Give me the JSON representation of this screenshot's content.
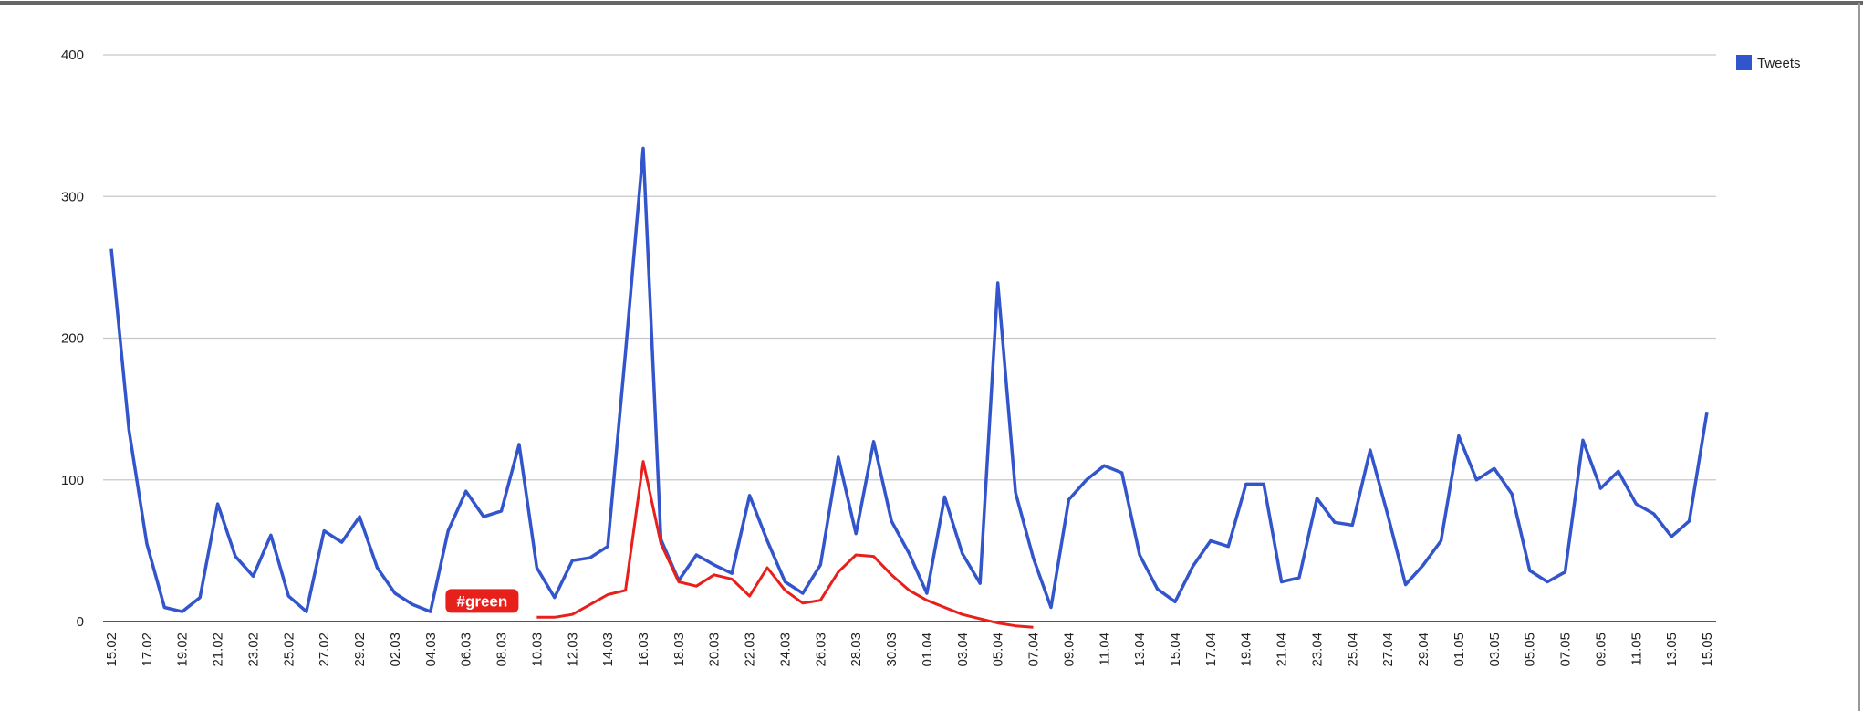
{
  "chart_data": {
    "type": "line",
    "categories": [
      "15.02",
      null,
      "17.02",
      null,
      "19.02",
      null,
      "21.02",
      null,
      "23.02",
      null,
      "25.02",
      null,
      "27.02",
      null,
      "29.02",
      null,
      "02.03",
      null,
      "04.03",
      null,
      "06.03",
      null,
      "08.03",
      null,
      "10.03",
      null,
      "12.03",
      null,
      "14.03",
      null,
      "16.03",
      null,
      "18.03",
      null,
      "20.03",
      null,
      "22.03",
      null,
      "24.03",
      null,
      "26.03",
      null,
      "28.03",
      null,
      "30.03",
      null,
      "01.04",
      null,
      "03.04",
      null,
      "05.04",
      null,
      "07.04",
      null,
      "09.04",
      null,
      "11.04",
      null,
      "13.04",
      null,
      "15.04",
      null,
      "17.04",
      null,
      "19.04",
      null,
      "21.04",
      null,
      "23.04",
      null,
      "25.04",
      null,
      "27.04",
      null,
      "29.04",
      null,
      "01.05",
      null,
      "03.05",
      null,
      "05.05",
      null,
      "07.05",
      null,
      "09.05",
      null,
      "11.05",
      null,
      "13.05",
      null,
      "15.05"
    ],
    "series": [
      {
        "name": "Tweets",
        "color": "#3355cc",
        "values": [
          263,
          135,
          55,
          10,
          7,
          17,
          83,
          46,
          32,
          61,
          18,
          7,
          64,
          56,
          74,
          38,
          20,
          12,
          7,
          64,
          92,
          74,
          78,
          125,
          38,
          17,
          43,
          45,
          53,
          190,
          334,
          58,
          29,
          47,
          40,
          34,
          89,
          57,
          28,
          20,
          40,
          116,
          62,
          127,
          71,
          48,
          20,
          88,
          48,
          27,
          239,
          91,
          45,
          10,
          86,
          100,
          110,
          105,
          47,
          23,
          14,
          39,
          57,
          53,
          97,
          97,
          28,
          31,
          87,
          70,
          68,
          121,
          75,
          26,
          40,
          57,
          131,
          100,
          108,
          90,
          36,
          28,
          35,
          128,
          94,
          106,
          83,
          76,
          60,
          71,
          148
        ]
      }
    ],
    "overlay": {
      "label": "#green",
      "color": "#e8201c",
      "values": [
        null,
        null,
        null,
        null,
        null,
        null,
        null,
        null,
        null,
        null,
        null,
        null,
        null,
        null,
        null,
        null,
        null,
        null,
        null,
        null,
        null,
        null,
        null,
        null,
        3,
        3,
        5,
        12,
        19,
        22,
        113,
        55,
        28,
        25,
        33,
        30,
        18,
        38,
        22,
        13,
        15,
        35,
        47,
        46,
        33,
        22,
        15,
        10,
        5,
        2,
        -1,
        -3,
        -4,
        null,
        null,
        null,
        null,
        null,
        null,
        null,
        null,
        null,
        null,
        null,
        null,
        null,
        null,
        null,
        null,
        null,
        null,
        null,
        null,
        null,
        null,
        null,
        null,
        null,
        null,
        null,
        null,
        null,
        null,
        null,
        null,
        null,
        null,
        null,
        null,
        null,
        null
      ]
    },
    "ylim": [
      0,
      400
    ],
    "yticks": [
      0,
      100,
      200,
      300,
      400
    ],
    "grid": true,
    "legend": "top-right"
  }
}
